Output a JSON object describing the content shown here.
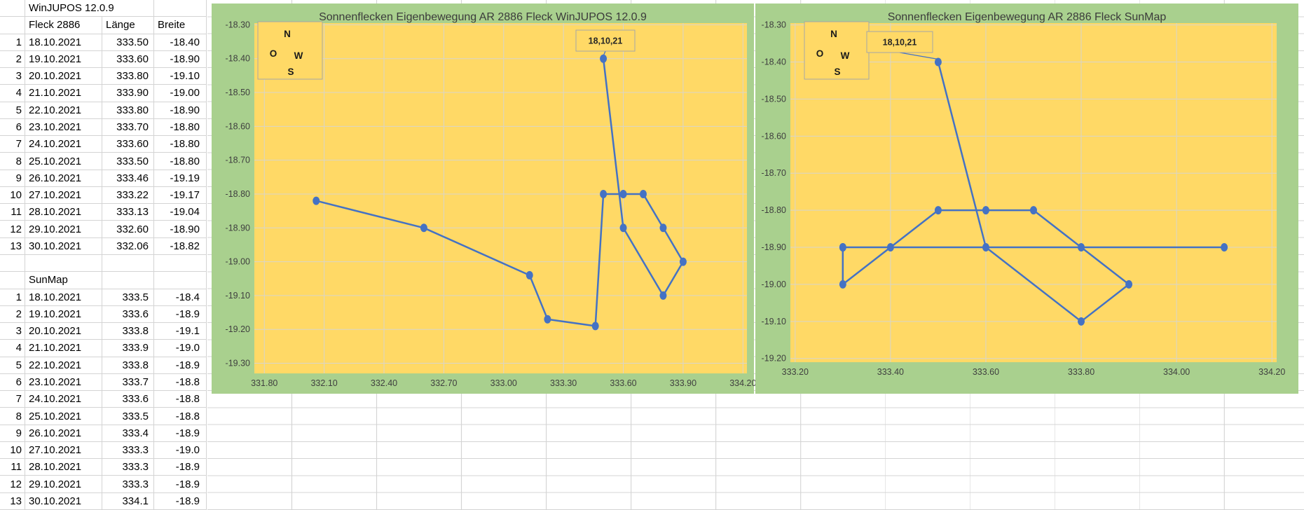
{
  "table": {
    "title": "WinJUPOS 12.0.9",
    "columns": {
      "fleck": "Fleck 2886",
      "laenge": "Länge",
      "breite": "Breite"
    },
    "winjupos": [
      {
        "n": "1",
        "date": "18.10.2021",
        "laenge": "333.50",
        "breite": "-18.40"
      },
      {
        "n": "2",
        "date": "19.10.2021",
        "laenge": "333.60",
        "breite": "-18.90"
      },
      {
        "n": "3",
        "date": "20.10.2021",
        "laenge": "333.80",
        "breite": "-19.10"
      },
      {
        "n": "4",
        "date": "21.10.2021",
        "laenge": "333.90",
        "breite": "-19.00"
      },
      {
        "n": "5",
        "date": "22.10.2021",
        "laenge": "333.80",
        "breite": "-18.90"
      },
      {
        "n": "6",
        "date": "23.10.2021",
        "laenge": "333.70",
        "breite": "-18.80"
      },
      {
        "n": "7",
        "date": "24.10.2021",
        "laenge": "333.60",
        "breite": "-18.80"
      },
      {
        "n": "8",
        "date": "25.10.2021",
        "laenge": "333.50",
        "breite": "-18.80"
      },
      {
        "n": "9",
        "date": "26.10.2021",
        "laenge": "333.46",
        "breite": "-19.19"
      },
      {
        "n": "10",
        "date": "27.10.2021",
        "laenge": "333.22",
        "breite": "-19.17"
      },
      {
        "n": "11",
        "date": "28.10.2021",
        "laenge": "333.13",
        "breite": "-19.04"
      },
      {
        "n": "12",
        "date": "29.10.2021",
        "laenge": "332.60",
        "breite": "-18.90"
      },
      {
        "n": "13",
        "date": "30.10.2021",
        "laenge": "332.06",
        "breite": "-18.82"
      }
    ],
    "sunmap_title": "SunMap",
    "sunmap": [
      {
        "n": "1",
        "date": "18.10.2021",
        "laenge": "333.5",
        "breite": "-18.4"
      },
      {
        "n": "2",
        "date": "19.10.2021",
        "laenge": "333.6",
        "breite": "-18.9"
      },
      {
        "n": "3",
        "date": "20.10.2021",
        "laenge": "333.8",
        "breite": "-19.1"
      },
      {
        "n": "4",
        "date": "21.10.2021",
        "laenge": "333.9",
        "breite": "-19.0"
      },
      {
        "n": "5",
        "date": "22.10.2021",
        "laenge": "333.8",
        "breite": "-18.9"
      },
      {
        "n": "6",
        "date": "23.10.2021",
        "laenge": "333.7",
        "breite": "-18.8"
      },
      {
        "n": "7",
        "date": "24.10.2021",
        "laenge": "333.6",
        "breite": "-18.8"
      },
      {
        "n": "8",
        "date": "25.10.2021",
        "laenge": "333.5",
        "breite": "-18.8"
      },
      {
        "n": "9",
        "date": "26.10.2021",
        "laenge": "333.4",
        "breite": "-18.9"
      },
      {
        "n": "10",
        "date": "27.10.2021",
        "laenge": "333.3",
        "breite": "-19.0"
      },
      {
        "n": "11",
        "date": "28.10.2021",
        "laenge": "333.3",
        "breite": "-18.9"
      },
      {
        "n": "12",
        "date": "29.10.2021",
        "laenge": "333.3",
        "breite": "-18.9"
      },
      {
        "n": "13",
        "date": "30.10.2021",
        "laenge": "334.1",
        "breite": "-18.9"
      }
    ]
  },
  "chart_data": [
    {
      "type": "line",
      "title": "Sonnenflecken Eigenbewegung AR 2886  Fleck WinJUPOS 12.0.9",
      "series": [
        {
          "name": "WinJUPOS",
          "points": [
            [
              333.5,
              -18.4
            ],
            [
              333.6,
              -18.9
            ],
            [
              333.8,
              -19.1
            ],
            [
              333.9,
              -19.0
            ],
            [
              333.8,
              -18.9
            ],
            [
              333.7,
              -18.8
            ],
            [
              333.6,
              -18.8
            ],
            [
              333.5,
              -18.8
            ],
            [
              333.46,
              -19.19
            ],
            [
              333.22,
              -19.17
            ],
            [
              333.13,
              -19.04
            ],
            [
              332.6,
              -18.9
            ],
            [
              332.06,
              -18.82
            ]
          ]
        }
      ],
      "x_ticks": [
        "331.80",
        "332.10",
        "332.40",
        "332.70",
        "333.00",
        "333.30",
        "333.60",
        "333.90",
        "334.20"
      ],
      "y_ticks": [
        "-18.30",
        "-18.40",
        "-18.50",
        "-18.60",
        "-18.70",
        "-18.80",
        "-18.90",
        "-19.00",
        "-19.10",
        "-19.20",
        "-19.30"
      ],
      "xlim": [
        331.75,
        334.22
      ],
      "ylim": [
        -18.295,
        -19.33
      ],
      "grid": true,
      "legend": "none",
      "annotation": "18,10,21",
      "compass": {
        "n": "N",
        "o": "O",
        "w": "W",
        "s": "S"
      }
    },
    {
      "type": "line",
      "title": "Sonnenflecken Eigenbewegung AR 2886  Fleck SunMap",
      "series": [
        {
          "name": "SunMap",
          "points": [
            [
              333.5,
              -18.4
            ],
            [
              333.6,
              -18.9
            ],
            [
              333.8,
              -19.1
            ],
            [
              333.9,
              -19.0
            ],
            [
              333.8,
              -18.9
            ],
            [
              333.7,
              -18.8
            ],
            [
              333.6,
              -18.8
            ],
            [
              333.5,
              -18.8
            ],
            [
              333.4,
              -18.9
            ],
            [
              333.3,
              -19.0
            ],
            [
              333.3,
              -18.9
            ],
            [
              333.3,
              -18.9
            ],
            [
              334.1,
              -18.9
            ]
          ]
        }
      ],
      "x_ticks": [
        "333.20",
        "333.40",
        "333.60",
        "333.80",
        "334.00",
        "334.20"
      ],
      "y_ticks": [
        "-18.30",
        "-18.40",
        "-18.50",
        "-18.60",
        "-18.70",
        "-18.80",
        "-18.90",
        "-19.00",
        "-19.10",
        "-19.20"
      ],
      "xlim": [
        333.19,
        334.21
      ],
      "ylim": [
        -18.295,
        -19.21
      ],
      "grid": true,
      "legend": "none",
      "annotation": "18,10,21",
      "compass": {
        "n": "N",
        "o": "O",
        "w": "W",
        "s": "S"
      }
    }
  ],
  "colors": {
    "chart_bg": "#A9D08E",
    "plot_bg": "#FFD966",
    "series_line": "#4472C4",
    "plot_gridline": "#D8D5CB",
    "sheet_gridline": "#D4D4D4",
    "axis_text": "#3F3F3F",
    "title_text": "#3B3B3B",
    "box_border": "#A6A6A6",
    "annotation_text": "#262626"
  }
}
